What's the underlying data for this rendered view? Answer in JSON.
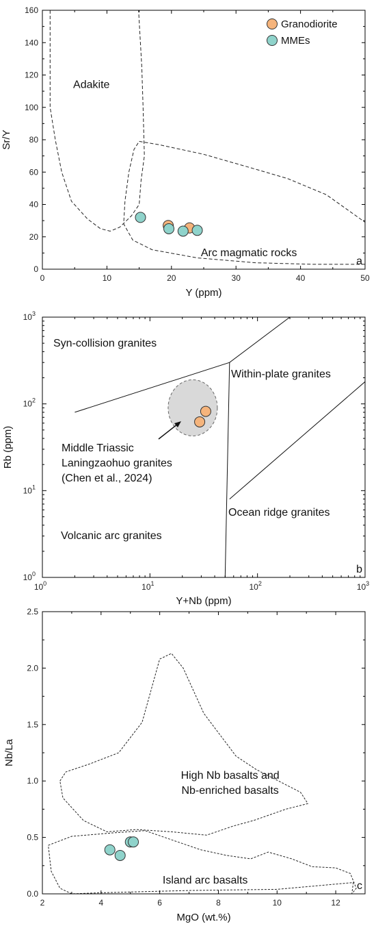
{
  "chart_data": [
    {
      "panel": "a",
      "type": "scatter",
      "xlabel": "Y (ppm)",
      "ylabel": "Sr/Y",
      "xlim": [
        0,
        50
      ],
      "ylim": [
        0,
        160
      ],
      "x_ticks": [
        "0",
        "10",
        "20",
        "30",
        "40",
        "50"
      ],
      "y_ticks": [
        "0",
        "20",
        "40",
        "60",
        "80",
        "100",
        "120",
        "140",
        "160"
      ],
      "legend": {
        "placement": "top-right",
        "items": [
          {
            "label": "Granodiorite",
            "color": "#f5b47c"
          },
          {
            "label": "MMEs",
            "color": "#8fd3cb"
          }
        ]
      },
      "series": [
        {
          "name": "Granodiorite",
          "color": "#f5b47c",
          "points": [
            [
              19.5,
              27
            ],
            [
              22.8,
              25.5
            ]
          ]
        },
        {
          "name": "MMEs",
          "color": "#8fd3cb",
          "points": [
            [
              15.2,
              32
            ],
            [
              19.6,
              25
            ],
            [
              21.8,
              23.5
            ],
            [
              24,
              24
            ]
          ]
        }
      ],
      "fields": [
        {
          "label": "Adakite",
          "boundary": [
            [
              1.2,
              160
            ],
            [
              1.2,
              100
            ],
            [
              2,
              80
            ],
            [
              3,
              60
            ],
            [
              4.5,
              42
            ],
            [
              7,
              31
            ],
            [
              9,
              25
            ],
            [
              10.5,
              23.5
            ],
            [
              12,
              26
            ],
            [
              13.8,
              33
            ],
            [
              15,
              40
            ],
            [
              15.3,
              55
            ],
            [
              15.8,
              70
            ],
            [
              15.6,
              100
            ],
            [
              15.4,
              125
            ],
            [
              14.9,
              160
            ]
          ]
        },
        {
          "label": "Arc magmatic rocks",
          "boundary": [
            [
              15,
              79
            ],
            [
              18,
              77
            ],
            [
              25,
              71
            ],
            [
              32,
              63
            ],
            [
              38,
              56
            ],
            [
              44,
              46
            ],
            [
              50,
              29
            ],
            [
              50,
              3
            ],
            [
              42,
              3
            ],
            [
              33,
              4
            ],
            [
              24,
              7
            ],
            [
              17,
              12
            ],
            [
              14,
              18
            ],
            [
              12.6,
              28
            ],
            [
              12.8,
              42
            ],
            [
              13.4,
              60
            ],
            [
              14.2,
              74
            ],
            [
              15,
              79
            ]
          ]
        }
      ]
    },
    {
      "panel": "b",
      "type": "scatter",
      "xlabel": "Y+Nb (ppm)",
      "ylabel": "Rb (ppm)",
      "xscale": "log",
      "yscale": "log",
      "xlim": [
        1,
        1000
      ],
      "ylim": [
        1,
        1000
      ],
      "x_ticks": [
        {
          "base": "10",
          "exp": "0"
        },
        {
          "base": "10",
          "exp": "1"
        },
        {
          "base": "10",
          "exp": "2"
        },
        {
          "base": "10",
          "exp": "3"
        }
      ],
      "y_ticks": [
        {
          "base": "10",
          "exp": "0"
        },
        {
          "base": "10",
          "exp": "1"
        },
        {
          "base": "10",
          "exp": "2"
        },
        {
          "base": "10",
          "exp": "3"
        }
      ],
      "series": [
        {
          "name": "Granodiorite",
          "color": "#f5b47c",
          "points": [
            [
              33,
              82
            ],
            [
              29,
              62
            ]
          ]
        }
      ],
      "highlight_field": {
        "center": [
          25,
          90
        ],
        "label_lines": [
          "Middle Triassic",
          "Laningzaohuo granites",
          "(Chen et al., 2024)"
        ]
      },
      "boundaries": [
        [
          [
            2,
            80
          ],
          [
            55,
            300
          ],
          [
            200,
            1000
          ]
        ],
        [
          [
            55,
            300
          ],
          [
            50,
            1
          ]
        ],
        [
          [
            55,
            8
          ],
          [
            1000,
            180
          ]
        ]
      ],
      "fields": [
        {
          "label": "Syn-collision granites"
        },
        {
          "label": "Within-plate granites"
        },
        {
          "label": "Ocean ridge granites"
        },
        {
          "label": "Volcanic arc granites"
        }
      ]
    },
    {
      "panel": "c",
      "type": "scatter",
      "xlabel": "MgO (wt.%)",
      "ylabel": "Nb/La",
      "xlim": [
        2,
        13
      ],
      "ylim": [
        0,
        2.5
      ],
      "x_ticks": [
        "2",
        "4",
        "6",
        "8",
        "10",
        "12"
      ],
      "y_ticks": [
        "0.0",
        "0.5",
        "1.0",
        "1.5",
        "2.0",
        "2.5"
      ],
      "series": [
        {
          "name": "MMEs",
          "color": "#8fd3cb",
          "points": [
            [
              4.3,
              0.39
            ],
            [
              4.65,
              0.34
            ],
            [
              5.0,
              0.46
            ],
            [
              5.1,
              0.46
            ]
          ]
        }
      ],
      "fields": [
        {
          "label_lines": [
            "High Nb basalts and",
            "Nb-enriched basalts"
          ],
          "boundary": [
            [
              2.6,
              1.0
            ],
            [
              2.8,
              1.08
            ],
            [
              3.6,
              1.15
            ],
            [
              4.6,
              1.25
            ],
            [
              5.4,
              1.52
            ],
            [
              6,
              2.08
            ],
            [
              6.4,
              2.13
            ],
            [
              6.8,
              2.0
            ],
            [
              7.5,
              1.6
            ],
            [
              8.6,
              1.22
            ],
            [
              9.3,
              1.1
            ],
            [
              10.8,
              0.9
            ],
            [
              11.05,
              0.8
            ],
            [
              10.3,
              0.75
            ],
            [
              9.2,
              0.65
            ],
            [
              8.5,
              0.6
            ],
            [
              7.6,
              0.52
            ],
            [
              6.4,
              0.55
            ],
            [
              5.2,
              0.57
            ],
            [
              4.2,
              0.55
            ],
            [
              3.4,
              0.65
            ],
            [
              2.7,
              0.85
            ],
            [
              2.6,
              1.0
            ]
          ]
        },
        {
          "label": "Island arc basalts",
          "boundary": [
            [
              2.2,
              0.43
            ],
            [
              3,
              0.51
            ],
            [
              4.4,
              0.54
            ],
            [
              5.5,
              0.56
            ],
            [
              6.5,
              0.47
            ],
            [
              7.4,
              0.39
            ],
            [
              8.3,
              0.34
            ],
            [
              9.1,
              0.31
            ],
            [
              9.7,
              0.37
            ],
            [
              10.5,
              0.31
            ],
            [
              11.2,
              0.24
            ],
            [
              12,
              0.23
            ],
            [
              12.5,
              0.18
            ],
            [
              12.7,
              0.05
            ],
            [
              12.55,
              0
            ],
            [
              12.6,
              0.1
            ],
            [
              10,
              0.04
            ],
            [
              7,
              0.03
            ],
            [
              4,
              0.01
            ],
            [
              3,
              0
            ],
            [
              2.6,
              0.05
            ],
            [
              2.3,
              0.2
            ],
            [
              2.2,
              0.43
            ]
          ]
        }
      ]
    }
  ]
}
